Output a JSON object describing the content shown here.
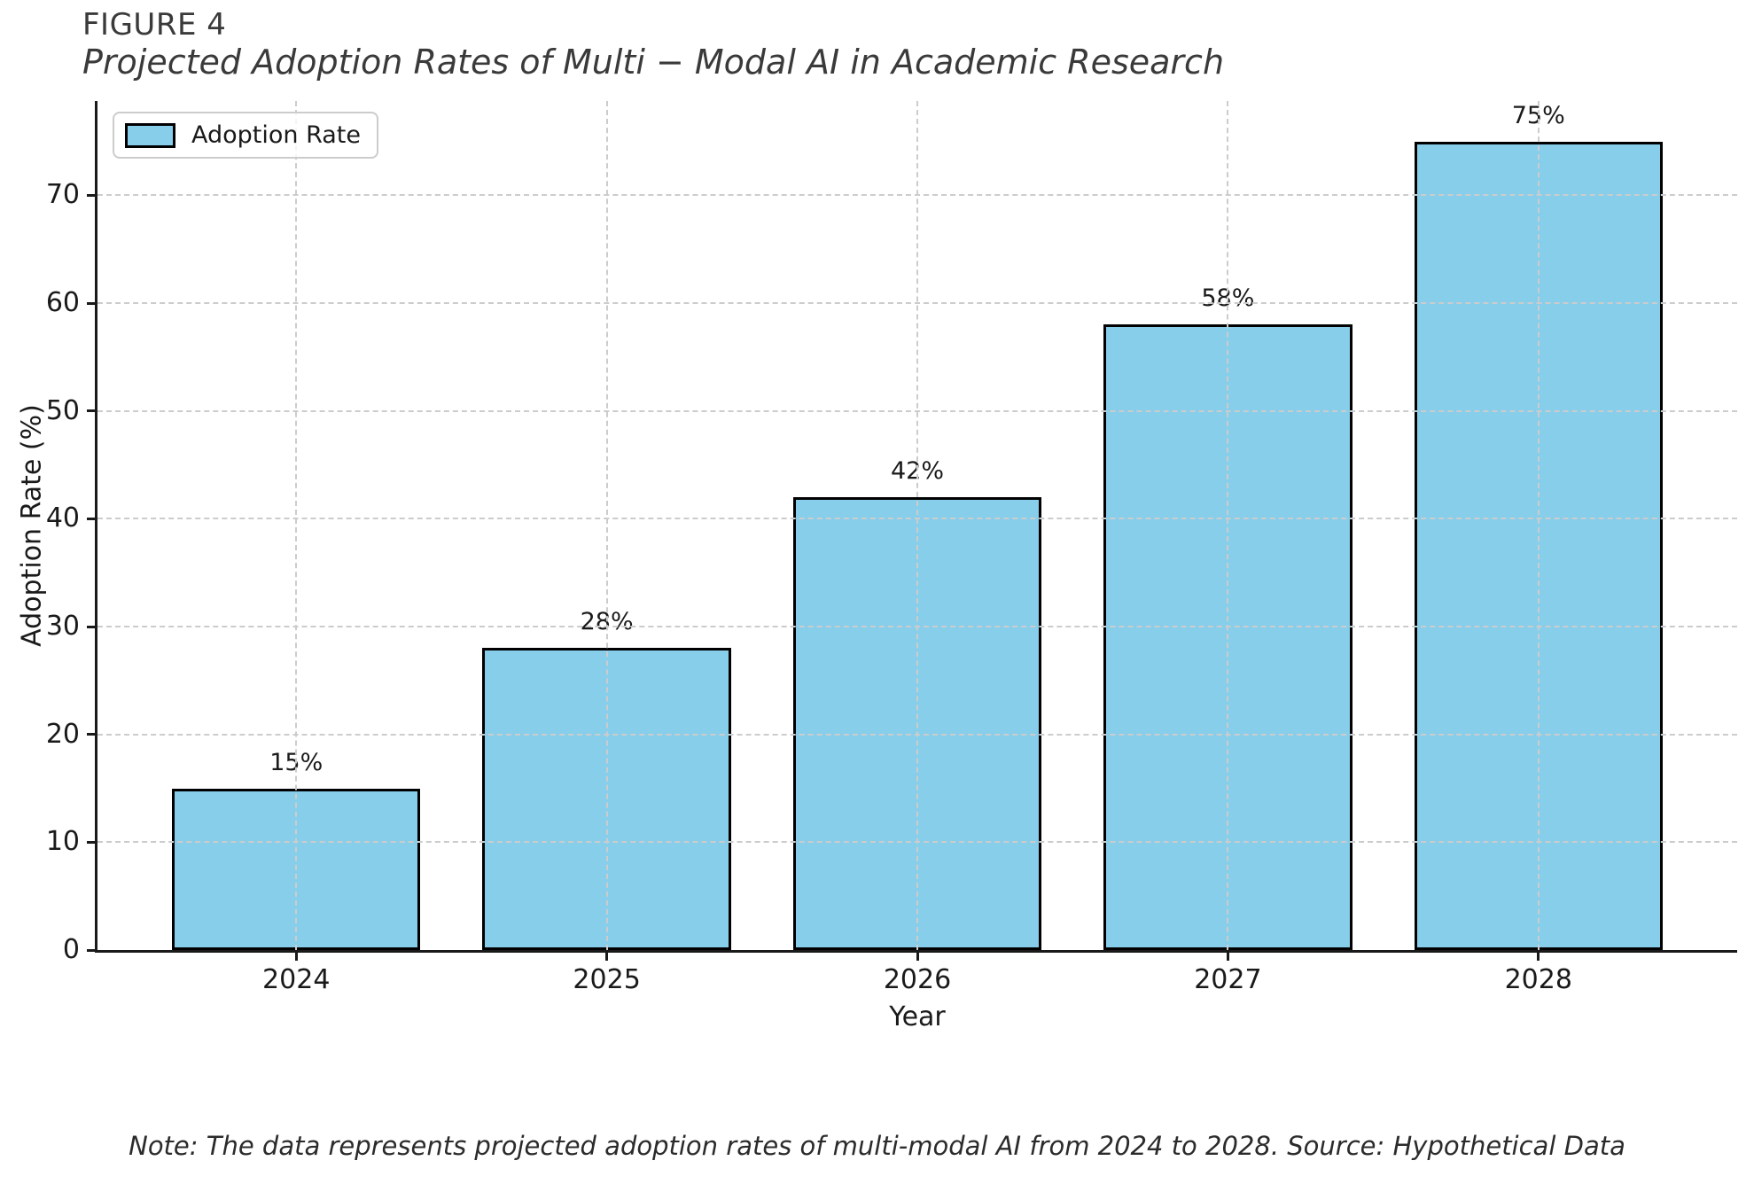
{
  "figure": {
    "label": "FIGURE 4",
    "note": "Note: The data represents projected adoption rates of multi-modal AI from 2024 to 2028. Source: Hypothetical Data"
  },
  "chart_data": {
    "type": "bar",
    "title": "Projected Adoption Rates of Multi − Modal AI in Academic Research",
    "categories": [
      "2024",
      "2025",
      "2026",
      "2027",
      "2028"
    ],
    "values": [
      15,
      28,
      42,
      58,
      75
    ],
    "value_labels": [
      "15%",
      "28%",
      "42%",
      "58%",
      "75%"
    ],
    "series_name": "Adoption Rate",
    "xlabel": "Year",
    "ylabel": "Adoption Rate (%)",
    "ylim": [
      0,
      78.75
    ],
    "yticks": [
      0,
      10,
      20,
      30,
      40,
      50,
      60,
      70
    ],
    "grid": true,
    "grid_style": "dashed",
    "legend_position": "upper left",
    "colors": {
      "bar_fill": "#87CEEB",
      "bar_edge": "#000000",
      "grid": "#cccccc",
      "axis": "#1a1a1a"
    }
  }
}
